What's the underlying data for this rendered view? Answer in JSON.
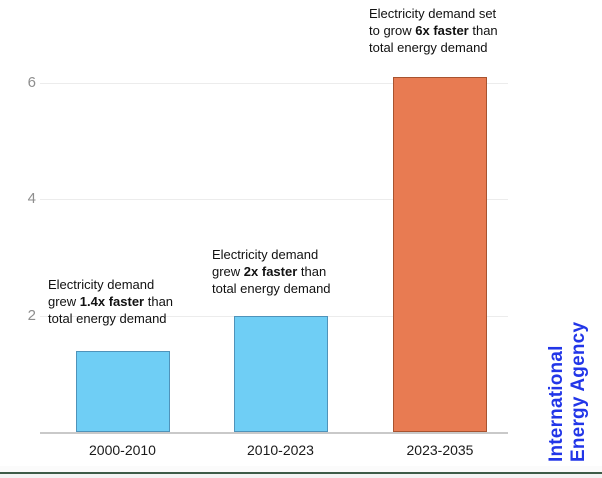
{
  "chart_data": {
    "type": "bar",
    "title": "",
    "xlabel": "",
    "ylabel": "",
    "categories": [
      "2000-2010",
      "2010-2023",
      "2023-2035"
    ],
    "values": [
      1.4,
      2.0,
      6.1
    ],
    "ylim": [
      0,
      6.6
    ],
    "yticks": [
      2,
      4,
      6
    ],
    "grid": true,
    "legend_position": "none",
    "bar_colors": [
      "#6FCEF5",
      "#6FCEF5",
      "#E87B52"
    ],
    "bar_border_colors": [
      "#4F93BA",
      "#4F93BA",
      "#A8532F"
    ],
    "annotations": [
      {
        "pre": "Electricity demand\ngrew ",
        "bold": "1.4x faster",
        "post": " than\ntotal energy demand"
      },
      {
        "pre": "Electricity demand\ngrew ",
        "bold": "2x faster",
        "post": " than\ntotal energy demand"
      },
      {
        "pre": "Electricity demand set\nto grow ",
        "bold": "6x faster",
        "post": " than\ntotal energy demand"
      }
    ]
  },
  "branding": {
    "line1": "International",
    "line2": "Energy Agency",
    "color": "#2236E8"
  },
  "colors": {
    "electricity_bar": "#6FCEF5",
    "projection_bar": "#E87B52",
    "gridline": "#ECECEC",
    "axis_line": "#C9C9C9",
    "tick_label": "#8E8E8E",
    "footer_rule": "#3E5C48"
  }
}
